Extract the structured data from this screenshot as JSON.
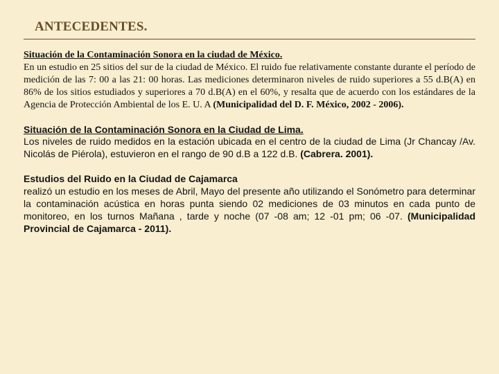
{
  "colors": {
    "background": "#f9eed0",
    "title": "#6a4c2a",
    "rule": "#6a4c2a",
    "body": "#141414"
  },
  "title": "ANTECEDENTES.",
  "sections": [
    {
      "font": "serif",
      "heading": "Situación de la Contaminación Sonora en la ciudad de México.",
      "body": "En un estudio en 25 sitios del sur de la ciudad de México. El ruido fue relativamente constante durante el período de medición de las 7: 00 a las 21: 00 horas. Las mediciones determinaron niveles de ruido superiores a 55 d.B(A) en 86% de los sitios estudiados y superiores a 70 d.B(A) en el 60%, y resalta que de acuerdo con los estándares de la Agencia de Protección Ambiental de los E. U. A ",
      "citation": "(Municipalidad del D. F. México, 2002 - 2006)."
    },
    {
      "font": "sans",
      "heading": "Situación de la Contaminación Sonora en la Ciudad de Lima.",
      "body": "Los niveles de ruido medidos en la estación ubicada en el centro de la ciudad de Lima (Jr Chancay /Av. Nicolás de Piérola), estuvieron en el rango de 90 d.B a 122 d.B. ",
      "citation": "(Cabrera. 2001)."
    },
    {
      "font": "sans",
      "heading": "Estudios del Ruido en la Ciudad de Cajamarca",
      "body": "realizó un estudio en los meses de Abril, Mayo del presente año utilizando el Sonómetro para determinar la contaminación acústica en horas punta siendo 02 mediciones de 03 minutos en cada punto de monitoreo, en los turnos Mañana , tarde y noche (07 -08 am; 12 -01 pm; 06 -07. ",
      "citation": "(Municipalidad Provincial de Cajamarca - 2011)."
    }
  ]
}
